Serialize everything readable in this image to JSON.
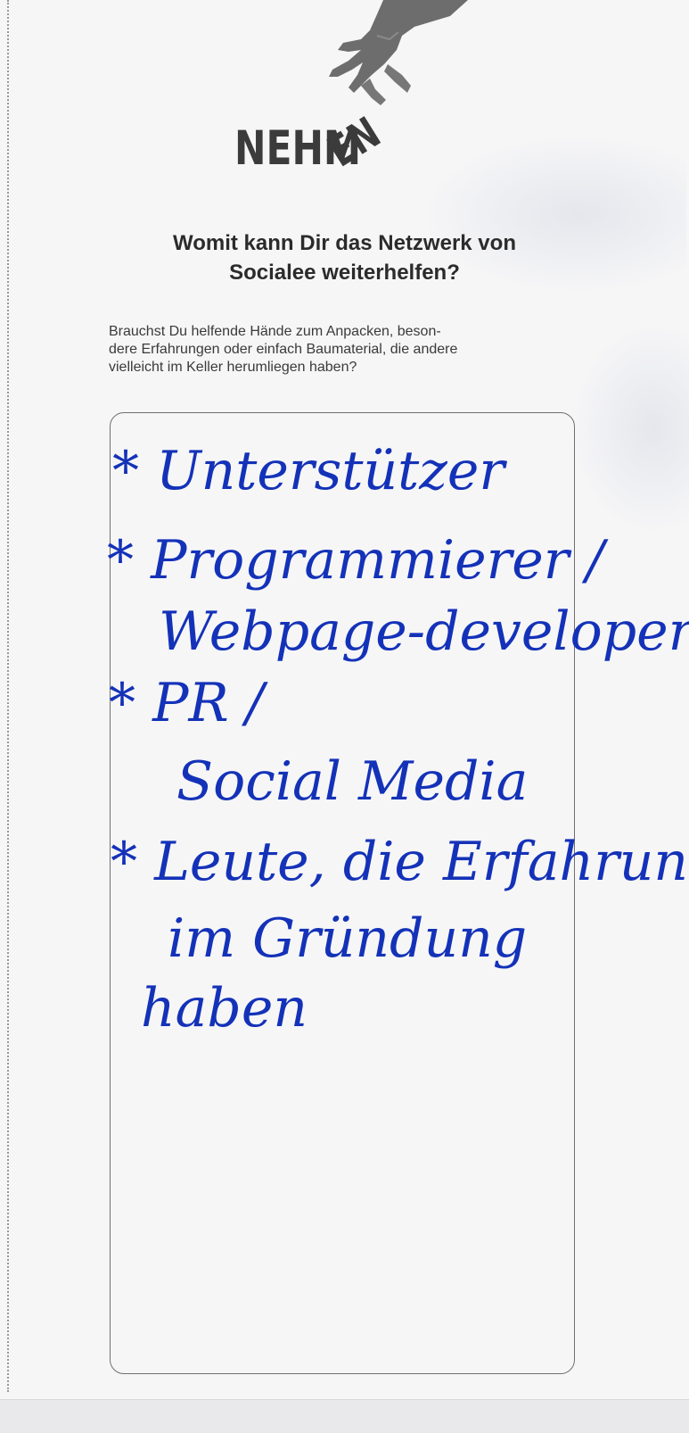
{
  "logo": {
    "icon": "hand-picking-icon",
    "word_part_1": "NEHM",
    "word_part_2": "EN"
  },
  "heading": {
    "line_1": "Womit kann Dir das Netzwerk von",
    "line_2": "Socialee weiterhelfen?"
  },
  "intro": {
    "line_1": "Brauchst Du helfende Hände zum Anpacken, beson-",
    "line_2": "dere Erfahrungen oder einfach Baumaterial, die andere",
    "line_3": "vielleicht im Keller herumliegen haben?"
  },
  "handwritten_answer": {
    "ink_color": "#1432b8",
    "lines": [
      "* Unterstützer",
      "* Programmierer /",
      "Webpage-developer",
      "* PR /",
      "Social Media",
      "* Leute, die Erfahrung",
      "im Gründung",
      "haben"
    ]
  }
}
